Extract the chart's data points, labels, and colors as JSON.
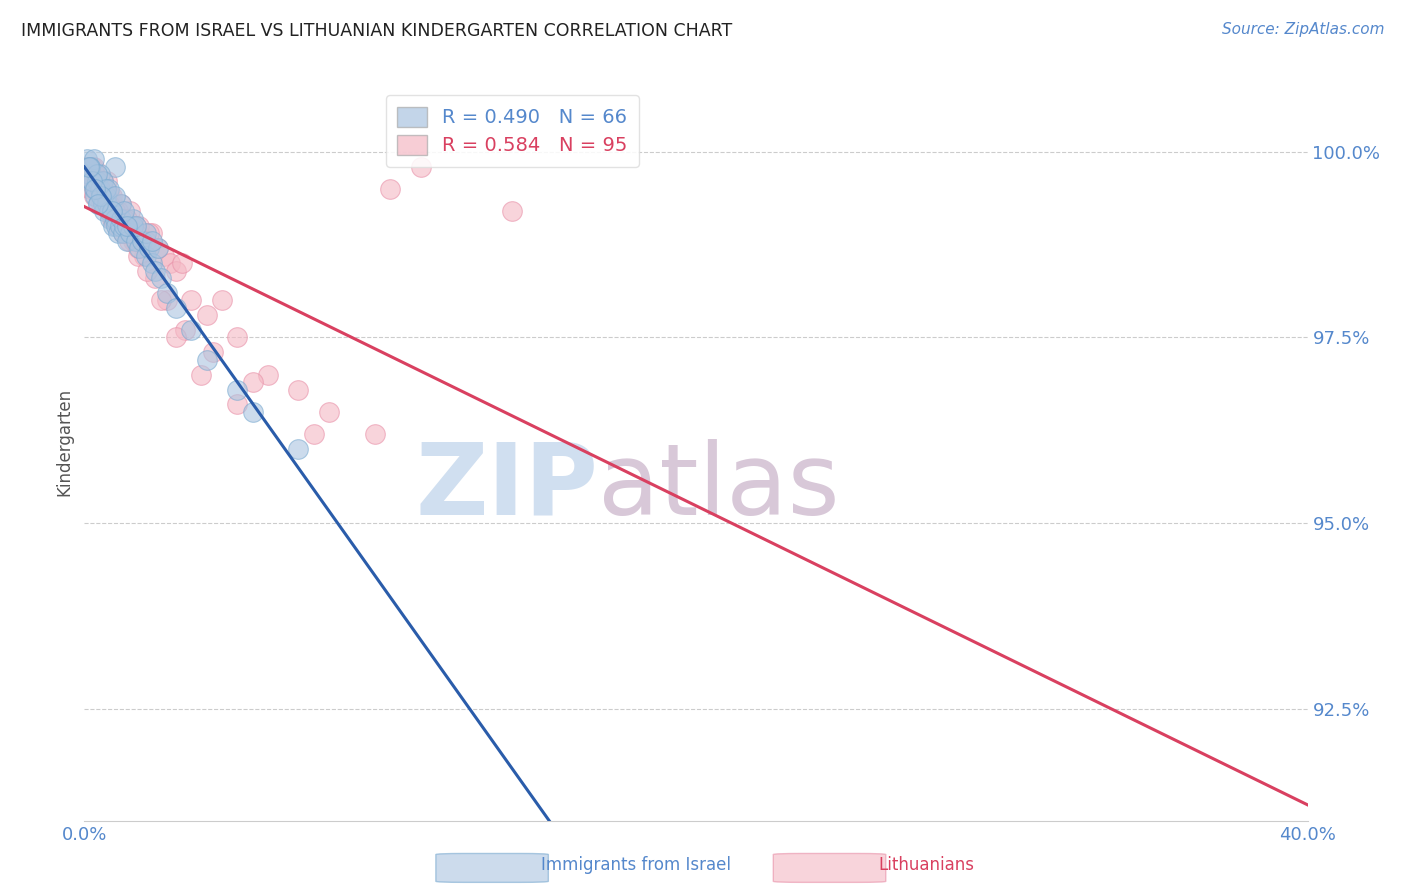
{
  "title": "IMMIGRANTS FROM ISRAEL VS LITHUANIAN KINDERGARTEN CORRELATION CHART",
  "source_text": "Source: ZipAtlas.com",
  "ylabel": "Kindergarten",
  "yticks": [
    92.5,
    95.0,
    97.5,
    100.0
  ],
  "ytick_labels": [
    "92.5%",
    "95.0%",
    "97.5%",
    "100.0%"
  ],
  "xlim": [
    0.0,
    40.0
  ],
  "ylim": [
    91.0,
    101.2
  ],
  "legend_blue_r": "R = 0.490",
  "legend_blue_n": "N = 66",
  "legend_pink_r": "R = 0.584",
  "legend_pink_n": "N = 95",
  "blue_series_label": "Immigrants from Israel",
  "pink_series_label": "Lithuanians",
  "blue_color": "#aac4e0",
  "pink_color": "#f4b8c4",
  "blue_scatter_edge": "#7aaad0",
  "pink_scatter_edge": "#e890a8",
  "blue_line_color": "#2a5caa",
  "pink_line_color": "#d94060",
  "watermark_zip": "ZIP",
  "watermark_atlas": "atlas",
  "watermark_color": "#d0dff0",
  "watermark_color2": "#d8c8d8",
  "title_color": "#222222",
  "axis_label_color": "#555555",
  "tick_color": "#5588cc",
  "grid_color": "#cccccc",
  "background_color": "#ffffff",
  "blue_x": [
    0.1,
    0.15,
    0.2,
    0.25,
    0.3,
    0.35,
    0.4,
    0.45,
    0.5,
    0.55,
    0.6,
    0.65,
    0.7,
    0.75,
    0.8,
    0.85,
    0.9,
    0.95,
    1.0,
    1.05,
    1.1,
    1.15,
    1.2,
    1.25,
    1.3,
    1.4,
    1.5,
    1.6,
    1.7,
    1.8,
    1.9,
    2.0,
    2.1,
    2.2,
    2.3,
    2.5,
    2.7,
    3.0,
    3.5,
    4.0,
    1.0,
    0.5,
    0.3,
    0.6,
    0.8,
    1.2,
    1.6,
    2.0,
    2.4,
    0.2,
    0.4,
    0.7,
    1.0,
    1.3,
    1.7,
    2.2,
    0.25,
    0.55,
    0.9,
    1.4,
    5.0,
    0.15,
    5.5,
    0.35,
    7.0,
    0.45
  ],
  "blue_y": [
    99.9,
    99.7,
    99.8,
    99.6,
    99.5,
    99.4,
    99.6,
    99.3,
    99.5,
    99.4,
    99.3,
    99.2,
    99.4,
    99.3,
    99.2,
    99.1,
    99.2,
    99.0,
    99.1,
    99.0,
    98.9,
    99.0,
    99.1,
    98.9,
    99.0,
    98.8,
    98.9,
    99.0,
    98.8,
    98.7,
    98.8,
    98.6,
    98.7,
    98.5,
    98.4,
    98.3,
    98.1,
    97.9,
    97.6,
    97.2,
    99.8,
    99.7,
    99.9,
    99.6,
    99.5,
    99.3,
    99.1,
    98.9,
    98.7,
    99.8,
    99.7,
    99.5,
    99.4,
    99.2,
    99.0,
    98.8,
    99.6,
    99.4,
    99.2,
    99.0,
    96.8,
    99.8,
    96.5,
    99.5,
    96.0,
    99.3
  ],
  "pink_x": [
    0.05,
    0.1,
    0.15,
    0.2,
    0.25,
    0.3,
    0.35,
    0.4,
    0.45,
    0.5,
    0.55,
    0.6,
    0.65,
    0.7,
    0.75,
    0.8,
    0.85,
    0.9,
    0.95,
    1.0,
    1.1,
    1.2,
    1.3,
    1.4,
    1.5,
    1.6,
    1.7,
    1.8,
    1.9,
    2.0,
    2.2,
    2.4,
    2.6,
    2.8,
    3.0,
    3.5,
    4.0,
    5.0,
    6.0,
    7.0,
    8.0,
    0.3,
    0.6,
    0.9,
    1.2,
    1.5,
    1.8,
    2.1,
    0.2,
    0.5,
    0.8,
    1.1,
    1.4,
    1.7,
    2.0,
    0.4,
    0.7,
    1.0,
    1.3,
    1.6,
    9.5,
    11.0,
    4.5,
    3.2,
    0.15,
    0.45,
    0.75,
    1.05,
    1.35,
    1.65,
    1.95,
    2.3,
    2.7,
    3.3,
    4.2,
    5.5,
    0.25,
    0.55,
    0.85,
    1.15,
    1.45,
    1.75,
    2.05,
    2.5,
    3.0,
    3.8,
    5.0,
    7.5,
    10.0,
    14.0,
    0.35,
    0.65,
    0.95,
    1.25,
    1.75
  ],
  "pink_y": [
    99.8,
    99.7,
    99.6,
    99.5,
    99.8,
    99.4,
    99.7,
    99.6,
    99.5,
    99.4,
    99.3,
    99.5,
    99.4,
    99.3,
    99.6,
    99.2,
    99.4,
    99.1,
    99.3,
    99.2,
    99.0,
    99.1,
    99.0,
    98.9,
    99.0,
    98.8,
    99.0,
    98.9,
    98.8,
    98.7,
    98.9,
    98.7,
    98.6,
    98.5,
    98.4,
    98.0,
    97.8,
    97.5,
    97.0,
    96.8,
    96.5,
    99.8,
    99.6,
    99.4,
    99.3,
    99.2,
    99.0,
    98.9,
    99.7,
    99.5,
    99.3,
    99.2,
    99.1,
    98.9,
    98.8,
    99.6,
    99.4,
    99.2,
    99.1,
    99.0,
    96.2,
    99.8,
    98.0,
    98.5,
    99.7,
    99.5,
    99.3,
    99.1,
    99.0,
    98.8,
    98.6,
    98.3,
    98.0,
    97.6,
    97.3,
    96.9,
    99.6,
    99.4,
    99.2,
    99.0,
    98.8,
    98.6,
    98.4,
    98.0,
    97.5,
    97.0,
    96.6,
    96.2,
    99.5,
    99.2,
    99.5,
    99.3,
    99.1,
    98.9,
    98.7
  ]
}
